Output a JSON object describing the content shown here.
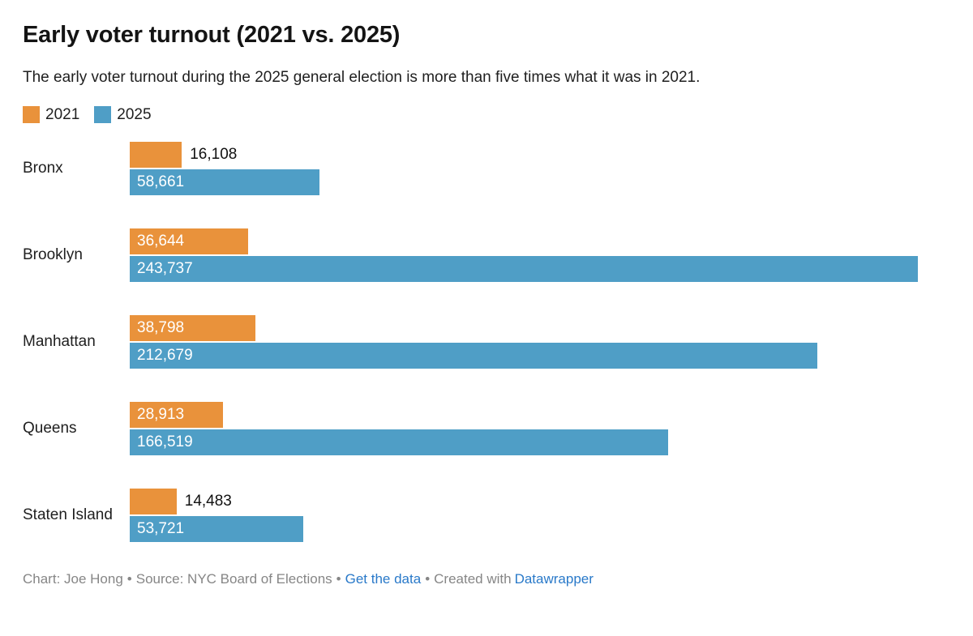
{
  "header": {
    "title": "Early voter turnout (2021 vs. 2025)",
    "subtitle": "The early voter turnout during the 2025 general election is more than five times what it was in 2021."
  },
  "legend": {
    "items": [
      {
        "label": "2021"
      },
      {
        "label": "2025"
      }
    ]
  },
  "colors": {
    "orange_2021": "#E9923B",
    "blue_2025": "#4F9EC6",
    "value_on_bar": "#FFFFFF",
    "value_outside": "#111111",
    "footer_text": "#868686",
    "link": "#2979C9"
  },
  "chart_data": {
    "type": "bar",
    "orientation": "horizontal",
    "title": "Early voter turnout (2021 vs. 2025)",
    "subtitle": "The early voter turnout during the 2025 general election is more than five times what it was in 2021.",
    "categories": [
      "Bronx",
      "Brooklyn",
      "Manhattan",
      "Queens",
      "Staten Island"
    ],
    "series": [
      {
        "name": "2021",
        "color": "#E9923B",
        "values": [
          16108,
          36644,
          38798,
          28913,
          14483
        ]
      },
      {
        "name": "2025",
        "color": "#4F9EC6",
        "values": [
          58661,
          243737,
          212679,
          166519,
          53721
        ]
      }
    ],
    "max_value": 243737,
    "legend_position": "top-left",
    "grid": false,
    "value_labels": true,
    "rows": [
      {
        "category": "Bronx",
        "v2021": 16108,
        "v2021_label": "16,108",
        "v2021_inside": false,
        "v2025": 58661,
        "v2025_label": "58,661",
        "v2025_inside": true
      },
      {
        "category": "Brooklyn",
        "v2021": 36644,
        "v2021_label": "36,644",
        "v2021_inside": true,
        "v2025": 243737,
        "v2025_label": "243,737",
        "v2025_inside": true
      },
      {
        "category": "Manhattan",
        "v2021": 38798,
        "v2021_label": "38,798",
        "v2021_inside": true,
        "v2025": 212679,
        "v2025_label": "212,679",
        "v2025_inside": true
      },
      {
        "category": "Queens",
        "v2021": 28913,
        "v2021_label": "28,913",
        "v2021_inside": true,
        "v2025": 166519,
        "v2025_label": "166,519",
        "v2025_inside": true
      },
      {
        "category": "Staten Island",
        "v2021": 14483,
        "v2021_label": "14,483",
        "v2021_inside": false,
        "v2025": 53721,
        "v2025_label": "53,721",
        "v2025_inside": true
      }
    ]
  },
  "footer": {
    "credit": "Chart: Joe Hong",
    "separator": "•",
    "source": "Source: NYC Board of Elections",
    "get_data_link": "Get the data",
    "created_with": "Created with",
    "tool_link": "Datawrapper"
  }
}
